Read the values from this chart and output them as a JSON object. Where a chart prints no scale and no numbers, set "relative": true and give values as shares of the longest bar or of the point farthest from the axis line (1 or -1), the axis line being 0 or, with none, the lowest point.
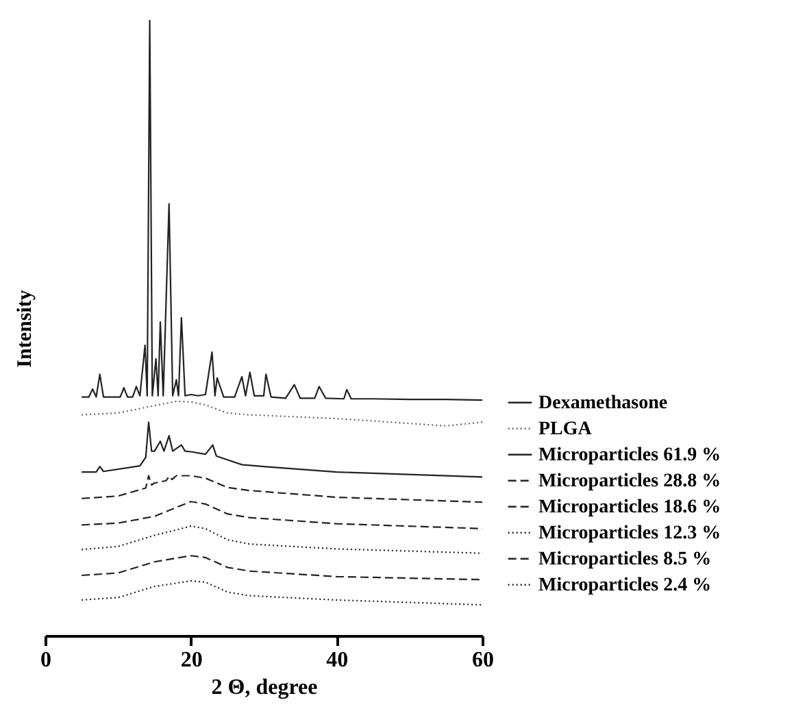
{
  "chart_data": {
    "type": "line",
    "relative": true,
    "xlabel": "2 Θ, degree",
    "ylabel": "Intensity",
    "xlim": [
      0,
      60
    ],
    "xticks": [
      0,
      20,
      40,
      60
    ],
    "grid": false,
    "legend": "right",
    "marker": "none",
    "series": [
      {
        "name": "Dexamethasone",
        "color": "#222222",
        "line_style": "solid",
        "x": [
          5,
          6,
          6.5,
          7,
          7.5,
          8,
          10.3,
          10.8,
          11.3,
          12,
          12.5,
          13,
          13.7,
          14,
          14.35,
          14.7,
          15.2,
          15.5,
          15.8,
          16.2,
          17,
          17.5,
          18,
          18.3,
          18.7,
          19.2,
          20,
          21,
          22,
          22.9,
          23.3,
          23.6,
          24.5,
          26,
          27,
          27.5,
          28.1,
          28.7,
          30,
          30.3,
          31,
          33,
          34.2,
          35,
          37,
          37.6,
          38.5,
          41,
          41.4,
          42,
          45,
          50,
          55,
          60
        ],
        "values": [
          0.388,
          0.388,
          0.401,
          0.388,
          0.425,
          0.388,
          0.388,
          0.403,
          0.388,
          0.388,
          0.405,
          0.39,
          0.472,
          0.39,
          1.0,
          0.39,
          0.45,
          0.39,
          0.51,
          0.39,
          0.702,
          0.39,
          0.416,
          0.39,
          0.517,
          0.39,
          0.392,
          0.39,
          0.392,
          0.461,
          0.39,
          0.419,
          0.388,
          0.388,
          0.421,
          0.39,
          0.428,
          0.39,
          0.39,
          0.425,
          0.388,
          0.386,
          0.408,
          0.386,
          0.386,
          0.405,
          0.386,
          0.385,
          0.4,
          0.385,
          0.385,
          0.384,
          0.384,
          0.383
        ]
      },
      {
        "name": "PLGA",
        "color": "#666666",
        "line_style": "dotted",
        "x": [
          5,
          10,
          15,
          18,
          20,
          22,
          25,
          28,
          40,
          50,
          55,
          60
        ],
        "values": [
          0.359,
          0.362,
          0.374,
          0.381,
          0.38,
          0.375,
          0.362,
          0.359,
          0.353,
          0.345,
          0.341,
          0.347
        ]
      },
      {
        "name": "Microparticles 61.9 %",
        "color": "#222222",
        "line_style": "solid",
        "x": [
          5,
          7,
          7.5,
          8,
          13,
          13.8,
          14.2,
          14.6,
          15,
          15.8,
          16.3,
          17,
          17.5,
          18.7,
          19.2,
          20,
          22,
          23,
          23.5,
          25,
          27,
          30,
          40,
          60
        ],
        "values": [
          0.266,
          0.266,
          0.275,
          0.267,
          0.276,
          0.29,
          0.347,
          0.3,
          0.3,
          0.316,
          0.3,
          0.325,
          0.3,
          0.31,
          0.3,
          0.299,
          0.295,
          0.31,
          0.292,
          0.286,
          0.278,
          0.275,
          0.266,
          0.258
        ]
      },
      {
        "name": "Microparticles 28.8 %",
        "color": "#222222",
        "line_style": "dashed",
        "x": [
          5,
          10,
          13.8,
          14.2,
          14.6,
          15,
          16.6,
          17,
          17.4,
          18,
          20,
          22,
          25,
          28,
          40,
          60
        ],
        "values": [
          0.223,
          0.227,
          0.24,
          0.26,
          0.245,
          0.248,
          0.252,
          0.259,
          0.254,
          0.26,
          0.26,
          0.256,
          0.241,
          0.236,
          0.225,
          0.217
        ]
      },
      {
        "name": "Microparticles 18.6 %",
        "color": "#222222",
        "line_style": "dashed",
        "x": [
          5,
          10,
          15,
          20,
          22,
          25,
          28,
          40,
          60
        ],
        "values": [
          0.18,
          0.183,
          0.194,
          0.218,
          0.214,
          0.198,
          0.192,
          0.182,
          0.174
        ]
      },
      {
        "name": "Microparticles 12.3 %",
        "color": "#222222",
        "line_style": "dotted",
        "x": [
          5,
          10,
          15,
          20,
          22,
          25,
          28,
          40,
          60
        ],
        "values": [
          0.14,
          0.145,
          0.163,
          0.178,
          0.174,
          0.156,
          0.149,
          0.141,
          0.134
        ]
      },
      {
        "name": "Microparticles 8.5 %",
        "color": "#222222",
        "line_style": "dashed",
        "x": [
          5,
          10,
          15,
          20,
          22,
          25,
          28,
          40,
          60
        ],
        "values": [
          0.098,
          0.102,
          0.12,
          0.13,
          0.127,
          0.111,
          0.105,
          0.096,
          0.091
        ]
      },
      {
        "name": "Microparticles 2.4 %",
        "color": "#222222",
        "line_style": "dotted",
        "x": [
          5,
          10,
          15,
          20,
          22,
          25,
          28,
          40,
          60
        ],
        "values": [
          0.058,
          0.062,
          0.08,
          0.089,
          0.087,
          0.071,
          0.065,
          0.058,
          0.05
        ]
      }
    ]
  }
}
